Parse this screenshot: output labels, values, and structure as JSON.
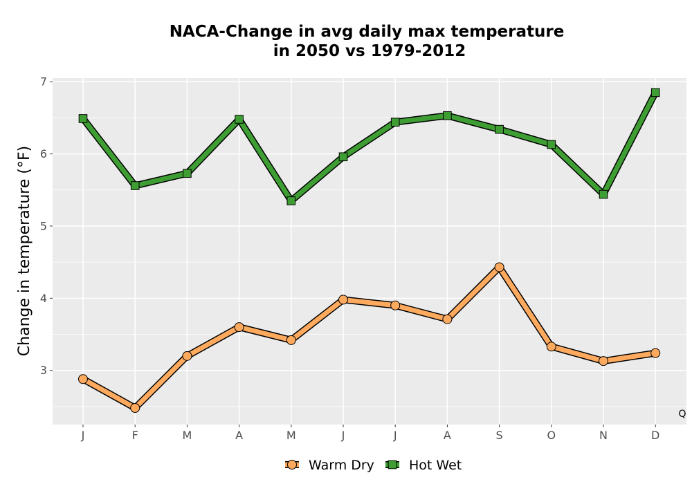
{
  "chart_data": {
    "type": "line",
    "title_line1": "NACA-Change in avg daily max temperature",
    "title_line2": "in 2050 vs 1979-2012",
    "xlabel": "",
    "ylabel": "Change in temperature (°F)",
    "categories": [
      "J",
      "F",
      "M",
      "A",
      "M",
      "J",
      "J",
      "A",
      "S",
      "O",
      "N",
      "D"
    ],
    "ylim": [
      2.25,
      7.05
    ],
    "yticks": [
      3,
      4,
      5,
      6,
      7
    ],
    "grid": true,
    "legend_position": "bottom",
    "corner_note": "Q",
    "series": [
      {
        "name": "Warm Dry",
        "marker": "circle",
        "color": "#FDAA5F",
        "values": [
          2.88,
          2.48,
          3.2,
          3.6,
          3.42,
          3.98,
          3.9,
          3.71,
          4.43,
          3.33,
          3.13,
          3.24
        ]
      },
      {
        "name": "Hot Wet",
        "marker": "square",
        "color": "#3E9E33",
        "values": [
          6.49,
          5.56,
          5.73,
          6.48,
          5.35,
          5.96,
          6.44,
          6.53,
          6.34,
          6.13,
          5.44,
          6.85
        ]
      }
    ]
  }
}
